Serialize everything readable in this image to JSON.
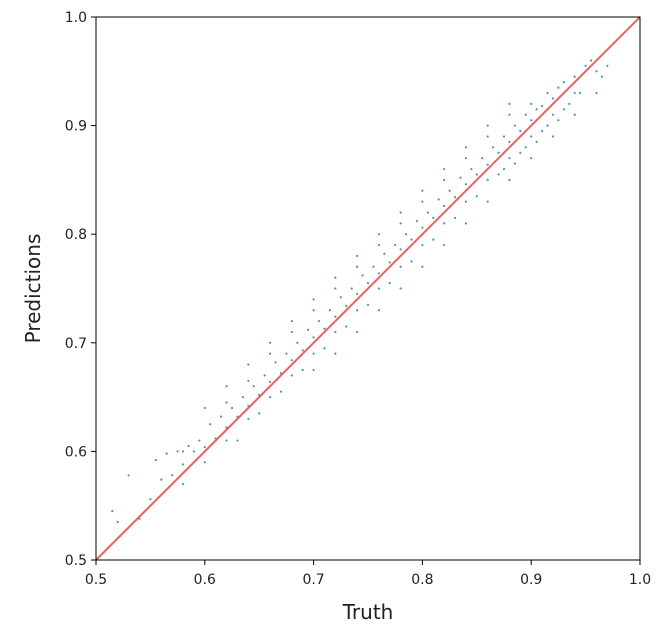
{
  "chart_data": {
    "type": "scatter",
    "xlabel": "Truth",
    "ylabel": "Predictions",
    "xlim": [
      0.5,
      1.0
    ],
    "ylim": [
      0.5,
      1.0
    ],
    "xticks": [
      "0.5",
      "0.6",
      "0.7",
      "0.8",
      "0.9",
      "1.0"
    ],
    "yticks": [
      "0.5",
      "0.6",
      "0.7",
      "0.8",
      "0.9",
      "1.0"
    ],
    "grid": false,
    "legend": "none",
    "point_color": "#3a76b0",
    "reference_line": {
      "x": [
        0.5,
        1.0
      ],
      "y": [
        0.5,
        1.0
      ],
      "color": "#e8635c"
    },
    "series": [
      {
        "values": [
          [
            0.515,
            0.545
          ],
          [
            0.52,
            0.535
          ],
          [
            0.53,
            0.578
          ],
          [
            0.54,
            0.538
          ],
          [
            0.55,
            0.556
          ],
          [
            0.555,
            0.592
          ],
          [
            0.56,
            0.574
          ],
          [
            0.565,
            0.598
          ],
          [
            0.57,
            0.578
          ],
          [
            0.575,
            0.6
          ],
          [
            0.58,
            0.588
          ],
          [
            0.585,
            0.605
          ],
          [
            0.59,
            0.6
          ],
          [
            0.595,
            0.61
          ],
          [
            0.6,
            0.604
          ],
          [
            0.605,
            0.625
          ],
          [
            0.61,
            0.612
          ],
          [
            0.615,
            0.632
          ],
          [
            0.62,
            0.622
          ],
          [
            0.625,
            0.64
          ],
          [
            0.63,
            0.632
          ],
          [
            0.635,
            0.65
          ],
          [
            0.64,
            0.642
          ],
          [
            0.645,
            0.66
          ],
          [
            0.65,
            0.652
          ],
          [
            0.655,
            0.67
          ],
          [
            0.66,
            0.664
          ],
          [
            0.665,
            0.682
          ],
          [
            0.67,
            0.672
          ],
          [
            0.675,
            0.69
          ],
          [
            0.68,
            0.684
          ],
          [
            0.685,
            0.7
          ],
          [
            0.69,
            0.693
          ],
          [
            0.695,
            0.712
          ],
          [
            0.7,
            0.705
          ],
          [
            0.705,
            0.72
          ],
          [
            0.71,
            0.713
          ],
          [
            0.715,
            0.73
          ],
          [
            0.72,
            0.724
          ],
          [
            0.725,
            0.742
          ],
          [
            0.73,
            0.734
          ],
          [
            0.735,
            0.75
          ],
          [
            0.74,
            0.745
          ],
          [
            0.745,
            0.762
          ],
          [
            0.75,
            0.755
          ],
          [
            0.755,
            0.77
          ],
          [
            0.76,
            0.764
          ],
          [
            0.765,
            0.782
          ],
          [
            0.77,
            0.774
          ],
          [
            0.775,
            0.79
          ],
          [
            0.78,
            0.786
          ],
          [
            0.785,
            0.8
          ],
          [
            0.79,
            0.795
          ],
          [
            0.795,
            0.812
          ],
          [
            0.8,
            0.806
          ],
          [
            0.805,
            0.82
          ],
          [
            0.81,
            0.815
          ],
          [
            0.815,
            0.832
          ],
          [
            0.82,
            0.826
          ],
          [
            0.825,
            0.84
          ],
          [
            0.83,
            0.834
          ],
          [
            0.835,
            0.852
          ],
          [
            0.84,
            0.846
          ],
          [
            0.845,
            0.86
          ],
          [
            0.85,
            0.855
          ],
          [
            0.855,
            0.87
          ],
          [
            0.86,
            0.864
          ],
          [
            0.865,
            0.88
          ],
          [
            0.87,
            0.875
          ],
          [
            0.875,
            0.89
          ],
          [
            0.88,
            0.885
          ],
          [
            0.885,
            0.9
          ],
          [
            0.89,
            0.895
          ],
          [
            0.895,
            0.91
          ],
          [
            0.9,
            0.905
          ],
          [
            0.905,
            0.915
          ],
          [
            0.91,
            0.918
          ],
          [
            0.915,
            0.93
          ],
          [
            0.92,
            0.925
          ],
          [
            0.925,
            0.935
          ],
          [
            0.93,
            0.94
          ],
          [
            0.94,
            0.945
          ],
          [
            0.95,
            0.955
          ],
          [
            0.96,
            0.95
          ],
          [
            0.965,
            0.945
          ],
          [
            0.58,
            0.57
          ],
          [
            0.6,
            0.59
          ],
          [
            0.62,
            0.61
          ],
          [
            0.64,
            0.63
          ],
          [
            0.66,
            0.65
          ],
          [
            0.68,
            0.67
          ],
          [
            0.7,
            0.69
          ],
          [
            0.72,
            0.71
          ],
          [
            0.74,
            0.73
          ],
          [
            0.76,
            0.75
          ],
          [
            0.78,
            0.77
          ],
          [
            0.8,
            0.79
          ],
          [
            0.82,
            0.81
          ],
          [
            0.84,
            0.83
          ],
          [
            0.86,
            0.85
          ],
          [
            0.88,
            0.87
          ],
          [
            0.9,
            0.89
          ],
          [
            0.92,
            0.91
          ],
          [
            0.94,
            0.93
          ],
          [
            0.62,
            0.645
          ],
          [
            0.64,
            0.665
          ],
          [
            0.66,
            0.69
          ],
          [
            0.68,
            0.71
          ],
          [
            0.7,
            0.73
          ],
          [
            0.72,
            0.75
          ],
          [
            0.74,
            0.77
          ],
          [
            0.76,
            0.79
          ],
          [
            0.78,
            0.81
          ],
          [
            0.8,
            0.83
          ],
          [
            0.82,
            0.85
          ],
          [
            0.84,
            0.87
          ],
          [
            0.86,
            0.89
          ],
          [
            0.88,
            0.91
          ],
          [
            0.9,
            0.92
          ],
          [
            0.63,
            0.61
          ],
          [
            0.65,
            0.635
          ],
          [
            0.67,
            0.655
          ],
          [
            0.69,
            0.675
          ],
          [
            0.71,
            0.695
          ],
          [
            0.73,
            0.715
          ],
          [
            0.75,
            0.735
          ],
          [
            0.77,
            0.755
          ],
          [
            0.79,
            0.775
          ],
          [
            0.81,
            0.795
          ],
          [
            0.83,
            0.815
          ],
          [
            0.85,
            0.835
          ],
          [
            0.87,
            0.855
          ],
          [
            0.89,
            0.875
          ],
          [
            0.91,
            0.895
          ],
          [
            0.93,
            0.915
          ],
          [
            0.72,
            0.76
          ],
          [
            0.74,
            0.78
          ],
          [
            0.76,
            0.8
          ],
          [
            0.78,
            0.82
          ],
          [
            0.8,
            0.84
          ],
          [
            0.82,
            0.86
          ],
          [
            0.84,
            0.88
          ],
          [
            0.86,
            0.9
          ],
          [
            0.88,
            0.92
          ],
          [
            0.7,
            0.74
          ],
          [
            0.68,
            0.72
          ],
          [
            0.66,
            0.7
          ],
          [
            0.64,
            0.68
          ],
          [
            0.62,
            0.66
          ],
          [
            0.6,
            0.64
          ],
          [
            0.58,
            0.6
          ],
          [
            0.7,
            0.675
          ],
          [
            0.72,
            0.69
          ],
          [
            0.74,
            0.71
          ],
          [
            0.76,
            0.73
          ],
          [
            0.78,
            0.75
          ],
          [
            0.8,
            0.77
          ],
          [
            0.82,
            0.79
          ],
          [
            0.84,
            0.81
          ],
          [
            0.86,
            0.83
          ],
          [
            0.88,
            0.85
          ],
          [
            0.9,
            0.87
          ],
          [
            0.92,
            0.89
          ],
          [
            0.94,
            0.91
          ],
          [
            0.96,
            0.93
          ],
          [
            0.97,
            0.955
          ],
          [
            0.955,
            0.96
          ],
          [
            0.945,
            0.93
          ],
          [
            0.935,
            0.92
          ],
          [
            0.925,
            0.905
          ],
          [
            0.915,
            0.9
          ],
          [
            0.905,
            0.885
          ],
          [
            0.895,
            0.88
          ],
          [
            0.885,
            0.865
          ],
          [
            0.875,
            0.86
          ]
        ]
      }
    ]
  }
}
